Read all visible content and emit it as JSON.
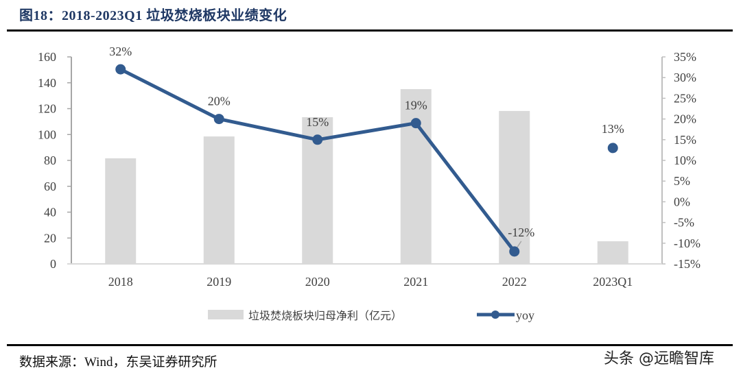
{
  "title": "图18：2018-2023Q1 垃圾焚烧板块业绩变化",
  "source": "数据来源：Wind，东吴证券研究所",
  "watermark": "头条 @远瞻智库",
  "colors": {
    "bar": "#d9d9d9",
    "line": "#325b8f",
    "axis": "#a6a6a6",
    "title": "#1f3864"
  },
  "chart_data": {
    "type": "bar+line",
    "categories": [
      "2018",
      "2019",
      "2020",
      "2021",
      "2022",
      "2023Q1"
    ],
    "series": [
      {
        "name": "垃圾焚烧板块归母净利（亿元）",
        "type": "bar",
        "axis": "left",
        "values": [
          81.6,
          98.5,
          113.4,
          135.1,
          118.2,
          17.5
        ]
      },
      {
        "name": "yoy",
        "type": "line",
        "axis": "right",
        "values": [
          32,
          20,
          15,
          19,
          -12,
          13
        ],
        "labels": [
          "32%",
          "20%",
          "15%",
          "19%",
          "-12%",
          "13%"
        ],
        "connected": [
          true,
          true,
          true,
          true,
          true,
          false
        ]
      }
    ],
    "left_axis": {
      "ylim": [
        0,
        160
      ],
      "ticks": [
        "0",
        "20",
        "40",
        "60",
        "80",
        "100",
        "120",
        "140",
        "160"
      ],
      "tick_values": [
        0,
        20,
        40,
        60,
        80,
        100,
        120,
        140,
        160
      ]
    },
    "right_axis": {
      "ylim": [
        -15,
        35
      ],
      "ticks": [
        "-15%",
        "-10%",
        "-5%",
        "0%",
        "5%",
        "10%",
        "15%",
        "20%",
        "25%",
        "30%",
        "35%"
      ],
      "tick_values": [
        -15,
        -10,
        -5,
        0,
        5,
        10,
        15,
        20,
        25,
        30,
        35
      ]
    },
    "legend": {
      "position": "bottom",
      "entries": [
        "垃圾焚烧板块归母净利（亿元）",
        "yoy"
      ]
    },
    "grid": false
  }
}
